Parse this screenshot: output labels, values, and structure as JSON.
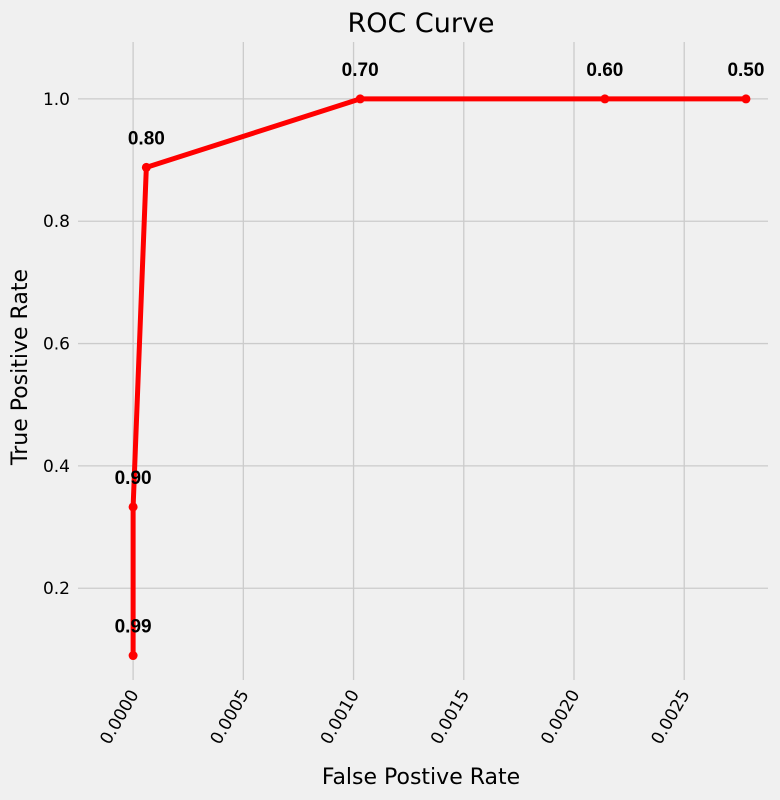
{
  "chart_data": {
    "type": "line",
    "title": "ROC Curve",
    "xlabel": "False Postive Rate",
    "ylabel": "True Positive Rate",
    "xlim": [
      -0.00025,
      0.00288
    ],
    "ylim": [
      0.05,
      1.093
    ],
    "xticks": [
      0.0,
      0.0005,
      0.001,
      0.0015,
      0.002,
      0.0025
    ],
    "xtick_labels": [
      "0.0000",
      "0.0005",
      "0.0010",
      "0.0015",
      "0.0020",
      "0.0025"
    ],
    "yticks": [
      0.2,
      0.4,
      0.6,
      0.8,
      1.0
    ],
    "ytick_labels": [
      "0.2",
      "0.4",
      "0.6",
      "0.8",
      "1.0"
    ],
    "grid": true,
    "series": [
      {
        "color": "#ff0000",
        "points": [
          {
            "x": 0.0,
            "y": 0.09,
            "label": "0.99"
          },
          {
            "x": 0.0,
            "y": 0.333,
            "label": "0.90"
          },
          {
            "x": 6e-05,
            "y": 0.888,
            "label": "0.80"
          },
          {
            "x": 0.00103,
            "y": 1.0,
            "label": "0.70"
          },
          {
            "x": 0.00214,
            "y": 1.0,
            "label": "0.60"
          },
          {
            "x": 0.00278,
            "y": 1.0,
            "label": "0.50"
          }
        ]
      }
    ]
  }
}
